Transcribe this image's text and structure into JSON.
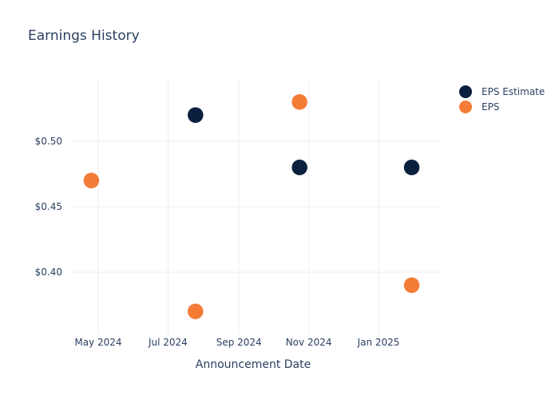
{
  "chart_data": {
    "type": "scatter",
    "title": "Earnings History",
    "xlabel": "Announcement Date",
    "ylabel": "",
    "x_ticks": [
      "May 2024",
      "Jul 2024",
      "Sep 2024",
      "Nov 2024",
      "Jan 2025"
    ],
    "y_ticks": [
      "$0.40",
      "$0.45",
      "$0.50"
    ],
    "ylim": [
      0.355,
      0.545
    ],
    "grid": true,
    "legend_position": "top-right",
    "x": [
      "2024-04-25",
      "2024-07-25",
      "2024-10-24",
      "2025-01-30"
    ],
    "series": [
      {
        "name": "EPS Estimate",
        "color": "#0b1f3f",
        "values": [
          0.47,
          0.52,
          0.48,
          0.48
        ]
      },
      {
        "name": "EPS",
        "color": "#f47c36",
        "values": [
          0.47,
          0.37,
          0.53,
          0.39
        ]
      }
    ]
  }
}
